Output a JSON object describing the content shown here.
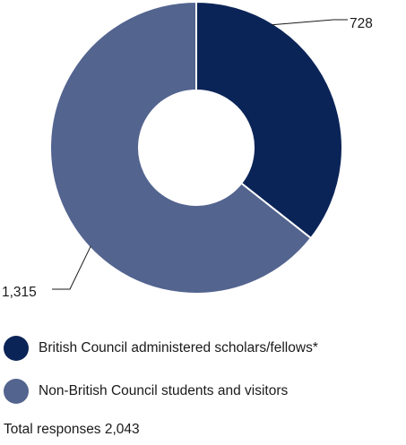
{
  "chart_data": {
    "type": "pie",
    "donut": true,
    "categories": [
      "British Council administered scholars/fellows*",
      "Non-British Council students and visitors"
    ],
    "values": [
      728,
      1315
    ],
    "value_labels": [
      "728",
      "1,315"
    ],
    "colors": [
      "#0b2458",
      "#53648f"
    ],
    "total_label": "Total responses 2,043"
  }
}
